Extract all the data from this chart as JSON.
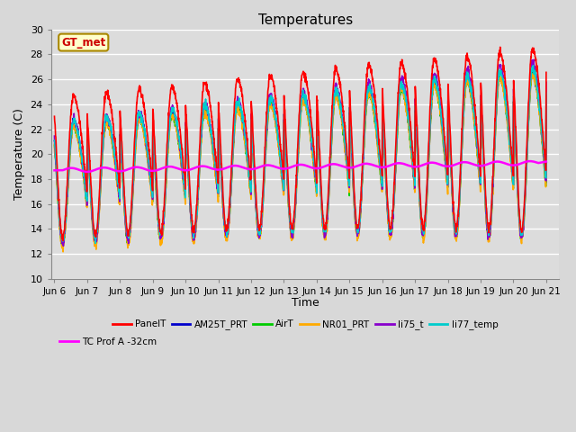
{
  "title": "Temperatures",
  "xlabel": "Time",
  "ylabel": "Temperature (C)",
  "ylim": [
    10,
    30
  ],
  "yticks": [
    10,
    12,
    14,
    16,
    18,
    20,
    22,
    24,
    26,
    28,
    30
  ],
  "annotation": "GT_met",
  "series": {
    "PanelT": {
      "color": "#ff0000",
      "lw": 1.2,
      "zorder": 5
    },
    "AM25T_PRT": {
      "color": "#0000cc",
      "lw": 1.2,
      "zorder": 4
    },
    "AirT": {
      "color": "#00cc00",
      "lw": 1.2,
      "zorder": 4
    },
    "NR01_PRT": {
      "color": "#ffaa00",
      "lw": 1.2,
      "zorder": 4
    },
    "li75_t": {
      "color": "#8800cc",
      "lw": 1.2,
      "zorder": 4
    },
    "li77_temp": {
      "color": "#00cccc",
      "lw": 1.2,
      "zorder": 4
    },
    "TC Prof A -32cm": {
      "color": "#ff00ff",
      "lw": 1.8,
      "zorder": 6
    }
  },
  "xtick_labels": [
    "Jun 6",
    "Jun 7",
    "Jun 8",
    "Jun 9",
    "Jun 10",
    "Jun 11",
    "Jun 12",
    "Jun 13",
    "Jun 14",
    "Jun 15",
    "Jun 16",
    "Jun 17",
    "Jun 18",
    "Jun 19",
    "Jun 20",
    "Jun 21"
  ]
}
